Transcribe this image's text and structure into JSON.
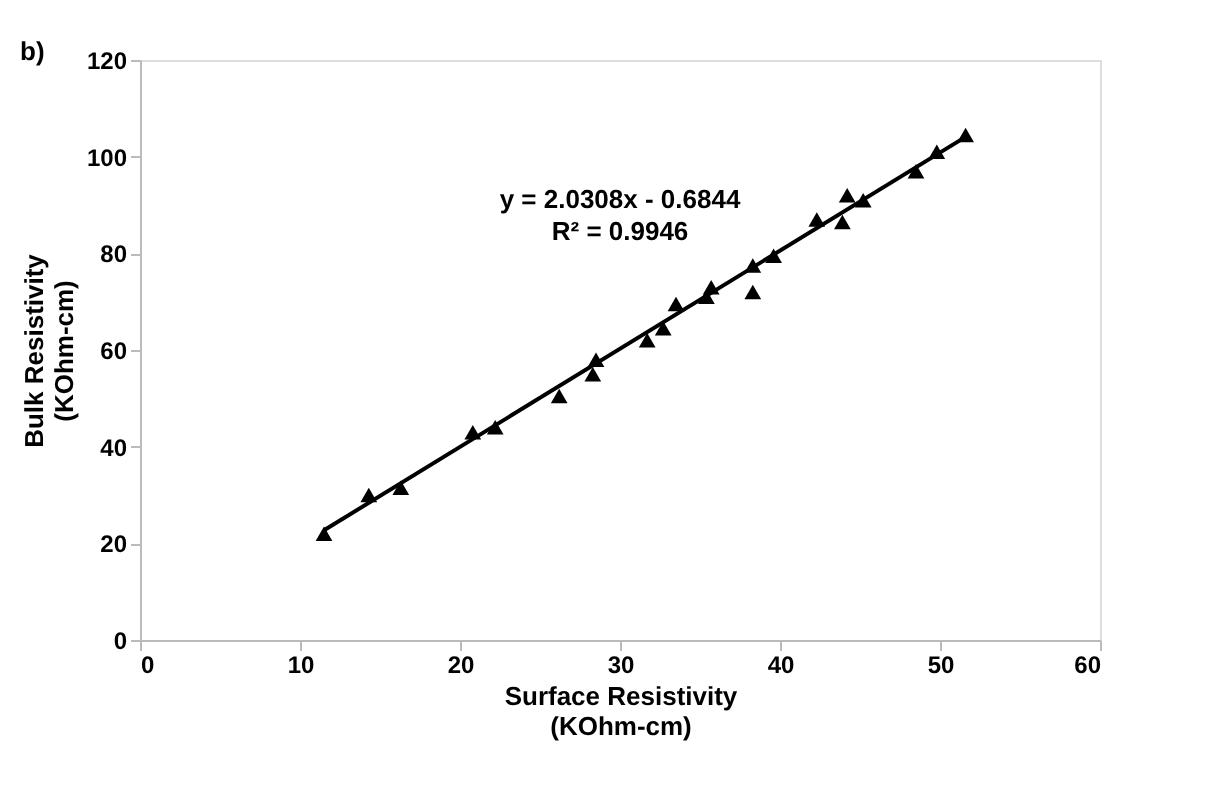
{
  "chart_data": {
    "type": "scatter",
    "xlabel": "Surface Resistivity\n(KOhm-cm)",
    "ylabel": "Bulk Resistivity\n(KOhm-cm)",
    "xlim": [
      0,
      60
    ],
    "ylim": [
      0,
      120
    ],
    "xticks": [
      0,
      10,
      20,
      30,
      40,
      50,
      60
    ],
    "yticks": [
      0,
      20,
      40,
      60,
      80,
      100,
      120
    ],
    "grid": false,
    "marker": "triangle",
    "series": [
      {
        "color": "#000000",
        "x": [
          11.5,
          14.3,
          16.3,
          20.8,
          22.2,
          26.2,
          28.3,
          28.5,
          31.7,
          32.7,
          33.5,
          35.4,
          35.7,
          38.3,
          38.3,
          39.6,
          42.3,
          43.9,
          44.2,
          45.2,
          48.5,
          49.8,
          51.6
        ],
        "values": [
          22,
          30,
          31.5,
          43,
          44,
          50.5,
          55,
          58,
          62,
          64.5,
          69.5,
          71,
          73,
          72,
          77.5,
          79.5,
          87,
          86.5,
          92,
          91,
          97,
          101,
          104.5
        ]
      },
      {
        "type": "line",
        "marker": "none",
        "color": "#000000",
        "line_style": "solid",
        "x": [
          11.5,
          51.6
        ],
        "values": [
          22.7,
          104.1
        ]
      }
    ],
    "annotations": [
      "b)",
      "y = 2.0308x  - 0.6844\nR² = 0.9946"
    ]
  }
}
